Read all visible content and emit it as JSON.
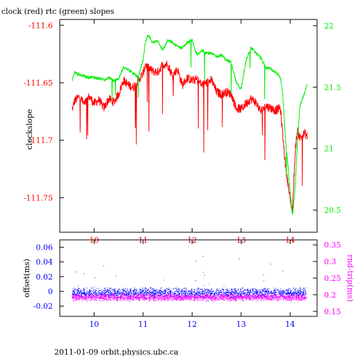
{
  "figure": {
    "title": "clock (red) rtc (green) slopes",
    "footer": "2011-01-09 orbit.physics.ubc.ca"
  },
  "colors": {
    "red": "#ff0000",
    "green": "#00ee00",
    "blue": "#0000ff",
    "magenta": "#ff00ff",
    "black": "#000000"
  },
  "chart_data": [
    {
      "id": "top",
      "type": "line",
      "title": "clock (red) rtc (green) slopes",
      "ylabel": "clockslope",
      "x_ticks": [
        10,
        11,
        12,
        13,
        14
      ],
      "xlim": [
        9.3,
        14.55
      ],
      "y_left": {
        "ticks": [
          -111.6,
          -111.65,
          -111.7,
          -111.75
        ],
        "tick_labels": [
          "-111.6",
          "-111.65",
          "-111.7",
          "-111.75"
        ],
        "lim": [
          -111.78,
          -111.595
        ],
        "color": "#ff0000"
      },
      "y_right": {
        "ticks": [
          22,
          21.5,
          21,
          20.5
        ],
        "tick_labels": [
          "22",
          "21.5",
          "21",
          "20.5"
        ],
        "lim": [
          20.32,
          22.05
        ],
        "color": "#00ee00"
      },
      "series": [
        {
          "axis": "left",
          "color": "#ff0000",
          "x": [
            9.55,
            9.6,
            9.7,
            9.8,
            9.9,
            10.0,
            10.1,
            10.2,
            10.3,
            10.4,
            10.5,
            10.6,
            10.7,
            10.8,
            10.9,
            11.0,
            11.05,
            11.1,
            11.2,
            11.3,
            11.4,
            11.5,
            11.6,
            11.7,
            11.8,
            11.9,
            12.0,
            12.1,
            12.2,
            12.3,
            12.4,
            12.5,
            12.6,
            12.7,
            12.8,
            12.9,
            13.0,
            13.1,
            13.2,
            13.3,
            13.4,
            13.5,
            13.6,
            13.7,
            13.8,
            13.85,
            13.9,
            13.95,
            14.0,
            14.05,
            14.1,
            14.15,
            14.2,
            14.3,
            14.35
          ],
          "y": [
            -111.674,
            -111.666,
            -111.662,
            -111.669,
            -111.662,
            -111.668,
            -111.665,
            -111.672,
            -111.664,
            -111.667,
            -111.66,
            -111.648,
            -111.652,
            -111.654,
            -111.648,
            -111.642,
            -111.634,
            -111.637,
            -111.64,
            -111.641,
            -111.634,
            -111.634,
            -111.644,
            -111.638,
            -111.652,
            -111.646,
            -111.648,
            -111.647,
            -111.652,
            -111.65,
            -111.648,
            -111.658,
            -111.66,
            -111.658,
            -111.66,
            -111.672,
            -111.673,
            -111.668,
            -111.664,
            -111.667,
            -111.675,
            -111.67,
            -111.672,
            -111.674,
            -111.672,
            -111.695,
            -111.72,
            -111.735,
            -111.752,
            -111.76,
            -111.712,
            -111.69,
            -111.698,
            -111.694,
            -111.697
          ]
        },
        {
          "axis": "right",
          "color": "#00ee00",
          "x": [
            9.55,
            9.6,
            9.7,
            9.8,
            9.9,
            10.0,
            10.1,
            10.2,
            10.3,
            10.4,
            10.5,
            10.6,
            10.7,
            10.8,
            10.9,
            11.0,
            11.05,
            11.1,
            11.2,
            11.3,
            11.4,
            11.5,
            11.6,
            11.7,
            11.8,
            11.9,
            12.0,
            12.1,
            12.2,
            12.3,
            12.4,
            12.5,
            12.6,
            12.7,
            12.8,
            12.9,
            13.0,
            13.1,
            13.2,
            13.3,
            13.4,
            13.5,
            13.6,
            13.7,
            13.8,
            13.85,
            13.9,
            13.95,
            14.0,
            14.05,
            14.1,
            14.15,
            14.2,
            14.3,
            14.35
          ],
          "y": [
            21.55,
            21.62,
            21.6,
            21.59,
            21.58,
            21.58,
            21.57,
            21.56,
            21.58,
            21.55,
            21.57,
            21.66,
            21.64,
            21.61,
            21.58,
            21.72,
            21.87,
            21.92,
            21.86,
            21.88,
            21.8,
            21.88,
            21.86,
            21.83,
            21.82,
            21.86,
            21.88,
            21.76,
            21.8,
            21.78,
            21.77,
            21.75,
            21.76,
            21.72,
            21.7,
            21.54,
            21.48,
            21.72,
            21.82,
            21.78,
            21.74,
            21.66,
            21.65,
            21.62,
            21.58,
            21.45,
            21.1,
            20.88,
            20.65,
            20.45,
            20.68,
            21.05,
            21.35,
            21.46,
            21.52
          ]
        }
      ]
    },
    {
      "id": "bottom",
      "type": "scatter",
      "ylabel_left": "offset(ms)",
      "ylabel_right": "rnd-trip(ms)",
      "x_ticks": [
        10,
        11,
        12,
        13,
        14
      ],
      "xlim": [
        9.3,
        14.55
      ],
      "y_left": {
        "ticks": [
          0.06,
          0.04,
          0.02,
          0,
          -0.02
        ],
        "tick_labels": [
          "0.06",
          "0.04",
          "0.02",
          "0",
          "-0.02"
        ],
        "lim": [
          -0.034,
          0.07
        ],
        "color": "#0000ff"
      },
      "y_right": {
        "ticks": [
          0.35,
          0.3,
          0.25,
          0.2,
          0.15
        ],
        "tick_labels": [
          "0.35",
          "0.3",
          "0.25",
          "0.2",
          "0.15"
        ],
        "lim": [
          0.135,
          0.365
        ],
        "color": "#ff00ff"
      },
      "series": [
        {
          "axis": "left",
          "color": "#0000ff",
          "x_range": [
            9.55,
            14.32
          ],
          "y_center": -0.002,
          "y_spread": 0.008
        },
        {
          "axis": "right",
          "color": "#ff00ff",
          "x_range": [
            9.55,
            14.32
          ],
          "y_center": 0.193,
          "y_spread": 0.012
        }
      ]
    }
  ]
}
